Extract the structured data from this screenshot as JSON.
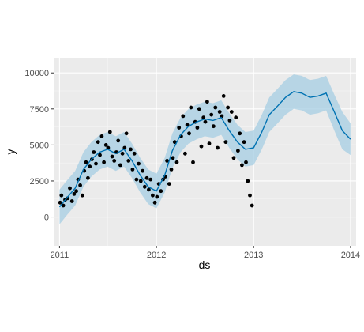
{
  "chart_data": {
    "type": "line",
    "title": "",
    "xlabel": "ds",
    "ylabel": "y",
    "xlim": [
      "2010-12-10",
      "2014-01-22"
    ],
    "ylim": [
      -2000,
      11000
    ],
    "x_ticks": [
      "2011",
      "2012",
      "2013",
      "2014"
    ],
    "x_tick_values": [
      "2011-01-01",
      "2012-01-01",
      "2013-01-01",
      "2014-01-01"
    ],
    "y_ticks": [
      "0",
      "2500",
      "5000",
      "7500",
      "10000"
    ],
    "y_tick_values": [
      0,
      2500,
      5000,
      7500,
      10000
    ],
    "grid": true,
    "legend": "none",
    "colors": {
      "panel": "#ebebeb",
      "grid_major": "#ffffff",
      "grid_minor": "#f5f5f5",
      "forecast_line": "#0072b2",
      "interval_band": "#a6cee3",
      "observed_points": "#000000"
    },
    "series": [
      {
        "type": "line",
        "x": [
          "2011-01-01",
          "2011-02-01",
          "2011-03-01",
          "2011-04-01",
          "2011-05-01",
          "2011-06-01",
          "2011-07-01",
          "2011-08-01",
          "2011-09-01",
          "2011-10-01",
          "2011-11-01",
          "2011-12-01",
          "2012-01-01",
          "2012-02-01",
          "2012-03-01",
          "2012-04-01",
          "2012-05-01",
          "2012-06-01",
          "2012-07-01",
          "2012-08-01",
          "2012-09-01",
          "2012-10-01",
          "2012-11-01",
          "2012-12-01",
          "2013-01-01",
          "2013-02-01",
          "2013-03-01",
          "2013-04-01",
          "2013-05-01",
          "2013-06-01",
          "2013-07-01",
          "2013-08-01",
          "2013-09-01",
          "2013-10-01",
          "2013-11-01",
          "2013-12-01",
          "2014-01-01"
        ],
        "y": [
          700,
          1400,
          2000,
          3300,
          4000,
          4500,
          4700,
          4400,
          4700,
          3900,
          2900,
          2100,
          1800,
          2900,
          4600,
          5700,
          6300,
          6600,
          6800,
          6700,
          6900,
          6000,
          5200,
          4700,
          4800,
          5900,
          7100,
          7700,
          8300,
          8700,
          8600,
          8300,
          8400,
          8600,
          7300,
          6000,
          5400
        ]
      },
      {
        "type": "band",
        "x": [
          "2011-01-01",
          "2011-02-01",
          "2011-03-01",
          "2011-04-01",
          "2011-05-01",
          "2011-06-01",
          "2011-07-01",
          "2011-08-01",
          "2011-09-01",
          "2011-10-01",
          "2011-11-01",
          "2011-12-01",
          "2012-01-01",
          "2012-02-01",
          "2012-03-01",
          "2012-04-01",
          "2012-05-01",
          "2012-06-01",
          "2012-07-01",
          "2012-08-01",
          "2012-09-01",
          "2012-10-01",
          "2012-11-01",
          "2012-12-01",
          "2013-01-01",
          "2013-02-01",
          "2013-03-01",
          "2013-04-01",
          "2013-05-01",
          "2013-06-01",
          "2013-07-01",
          "2013-08-01",
          "2013-09-01",
          "2013-10-01",
          "2013-11-01",
          "2013-12-01",
          "2014-01-01"
        ],
        "lower": [
          -500,
          200,
          800,
          2100,
          2800,
          3300,
          3500,
          3200,
          3500,
          2700,
          1700,
          900,
          600,
          1700,
          3400,
          4500,
          5100,
          5400,
          5600,
          5500,
          5700,
          4800,
          4000,
          3500,
          3600,
          4700,
          5900,
          6500,
          7100,
          7500,
          7400,
          7100,
          7200,
          7400,
          6000,
          4700,
          4300
        ],
        "upper": [
          1900,
          2600,
          3200,
          4500,
          5200,
          5700,
          5900,
          5600,
          5900,
          5100,
          4100,
          3300,
          3000,
          4100,
          5800,
          6900,
          7500,
          7800,
          8000,
          7900,
          8100,
          7200,
          6400,
          5900,
          6000,
          7100,
          8300,
          8900,
          9500,
          9900,
          9800,
          9500,
          9600,
          9800,
          8500,
          7300,
          6500
        ]
      },
      {
        "type": "scatter",
        "x": [
          "2011-01-03",
          "2011-01-08",
          "2011-01-15",
          "2011-01-22",
          "2011-02-01",
          "2011-02-09",
          "2011-02-17",
          "2011-02-25",
          "2011-03-05",
          "2011-03-12",
          "2011-03-20",
          "2011-03-28",
          "2011-04-04",
          "2011-04-11",
          "2011-04-18",
          "2011-04-25",
          "2011-05-03",
          "2011-05-10",
          "2011-05-18",
          "2011-05-26",
          "2011-06-02",
          "2011-06-09",
          "2011-06-17",
          "2011-06-25",
          "2011-07-03",
          "2011-07-10",
          "2011-07-18",
          "2011-07-26",
          "2011-08-03",
          "2011-08-10",
          "2011-08-18",
          "2011-08-26",
          "2011-09-03",
          "2011-09-10",
          "2011-09-18",
          "2011-09-26",
          "2011-10-03",
          "2011-10-10",
          "2011-10-18",
          "2011-10-26",
          "2011-11-03",
          "2011-11-10",
          "2011-11-18",
          "2011-11-26",
          "2011-12-03",
          "2011-12-10",
          "2011-12-18",
          "2011-12-26",
          "2012-01-03",
          "2012-01-10",
          "2012-01-18",
          "2012-01-26",
          "2012-02-03",
          "2012-02-10",
          "2012-02-18",
          "2012-02-26",
          "2012-03-03",
          "2012-03-10",
          "2012-03-18",
          "2012-03-26",
          "2012-04-03",
          "2012-04-10",
          "2012-04-18",
          "2012-04-26",
          "2012-05-03",
          "2012-05-10",
          "2012-05-18",
          "2012-05-26",
          "2012-06-03",
          "2012-06-10",
          "2012-06-18",
          "2012-06-26",
          "2012-07-03",
          "2012-07-10",
          "2012-07-18",
          "2012-07-26",
          "2012-08-03",
          "2012-08-10",
          "2012-08-18",
          "2012-08-26",
          "2012-09-03",
          "2012-09-10",
          "2012-09-18",
          "2012-09-26",
          "2012-10-03",
          "2012-10-10",
          "2012-10-18",
          "2012-10-26",
          "2012-11-03",
          "2012-11-10",
          "2012-11-18",
          "2012-11-26",
          "2012-12-03",
          "2012-12-10",
          "2012-12-18",
          "2012-12-26"
        ],
        "y": [
          1000,
          1500,
          800,
          1200,
          1300,
          2000,
          1100,
          1600,
          1800,
          2600,
          2200,
          1500,
          3200,
          3800,
          2700,
          3500,
          4000,
          4500,
          3700,
          5200,
          4300,
          5600,
          3800,
          5000,
          4800,
          5900,
          4200,
          3900,
          4500,
          5300,
          3600,
          4400,
          4800,
          5800,
          3900,
          4700,
          3300,
          4400,
          2600,
          3700,
          2500,
          3200,
          2100,
          2700,
          1900,
          2600,
          1500,
          1000,
          1400,
          2300,
          1800,
          2600,
          2800,
          3900,
          2300,
          3300,
          4100,
          5200,
          3800,
          6200,
          5600,
          7000,
          4400,
          6400,
          5800,
          7600,
          3800,
          6600,
          6200,
          7500,
          4900,
          6900,
          6600,
          8000,
          5100,
          7100,
          6300,
          7600,
          4800,
          7300,
          7000,
          8400,
          5200,
          7600,
          6700,
          7300,
          4100,
          6900,
          4600,
          5800,
          3600,
          5200,
          3800,
          2500,
          1500,
          800
        ]
      }
    ]
  }
}
